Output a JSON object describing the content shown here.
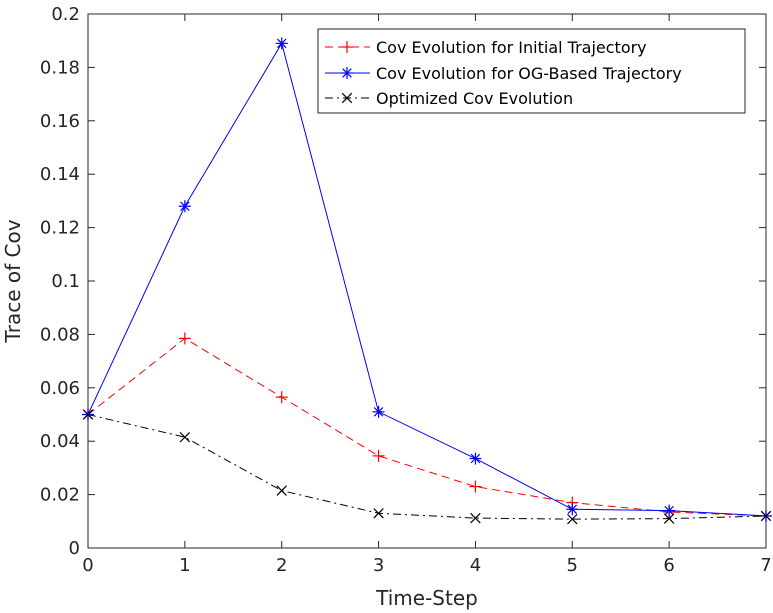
{
  "chart_data": {
    "type": "line",
    "title": "",
    "xlabel": "Time-Step",
    "ylabel": "Trace of Cov",
    "xlim": [
      0,
      7
    ],
    "ylim": [
      0,
      0.2
    ],
    "x": [
      0,
      1,
      2,
      3,
      4,
      5,
      6,
      7
    ],
    "x_ticks": [
      "0",
      "1",
      "2",
      "3",
      "4",
      "5",
      "6",
      "7"
    ],
    "y_ticks": [
      "0",
      "0.02",
      "0.04",
      "0.06",
      "0.08",
      "0.1",
      "0.12",
      "0.14",
      "0.16",
      "0.18",
      "0.2"
    ],
    "grid": false,
    "legend_position": "top-right",
    "series": [
      {
        "name": "Cov Evolution for Initial Trajectory",
        "color": "#ff0000",
        "line_style": "dashed",
        "marker": "plus",
        "values": [
          0.05,
          0.0785,
          0.0565,
          0.0345,
          0.023,
          0.017,
          0.0135,
          0.012
        ]
      },
      {
        "name": "Cov Evolution for OG-Based Trajectory",
        "color": "#0000ff",
        "line_style": "solid",
        "marker": "asterisk",
        "values": [
          0.05,
          0.128,
          0.189,
          0.051,
          0.0335,
          0.0145,
          0.014,
          0.012
        ]
      },
      {
        "name": "Optimized Cov Evolution",
        "color": "#000000",
        "line_style": "dashdot",
        "marker": "cross",
        "values": [
          0.05,
          0.0415,
          0.0215,
          0.013,
          0.0112,
          0.0108,
          0.011,
          0.012
        ]
      }
    ]
  }
}
